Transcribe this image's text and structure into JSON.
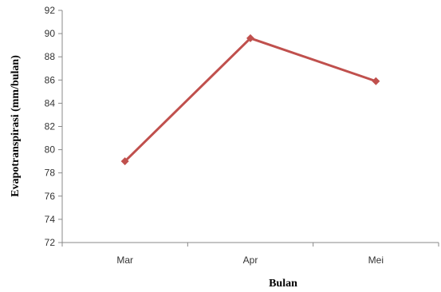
{
  "chart_data": {
    "type": "line",
    "categories": [
      "Mar",
      "Apr",
      "Mei"
    ],
    "series": [
      {
        "values": [
          79.0,
          89.6,
          85.9
        ]
      }
    ],
    "xlabel": "Bulan",
    "ylabel": "Evapotranspirasi (mm/bulan)",
    "ylim": [
      72,
      92
    ],
    "yticks": [
      72,
      74,
      76,
      78,
      80,
      82,
      84,
      86,
      88,
      90,
      92
    ],
    "grid": false,
    "legend": "none",
    "line_color": "#C0504D",
    "marker": "diamond"
  }
}
